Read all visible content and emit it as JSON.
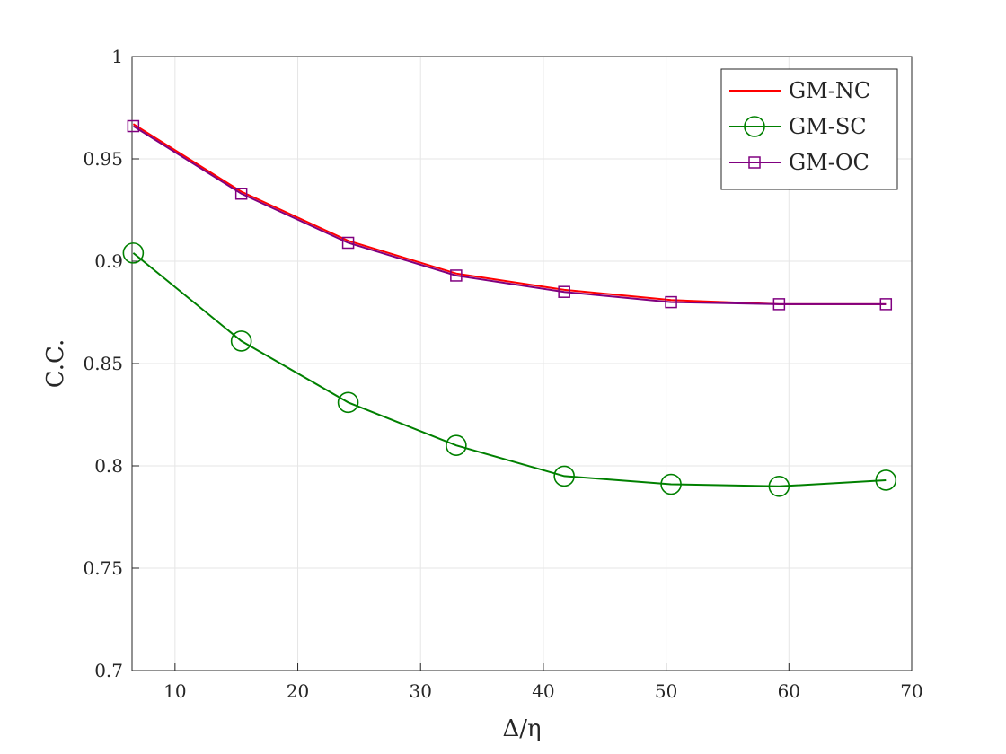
{
  "chart_data": {
    "type": "line",
    "xlabel": "Δ/η",
    "ylabel": "C.C.",
    "xlim": [
      6.5,
      70
    ],
    "ylim": [
      0.7,
      1.0
    ],
    "x_ticks": [
      10,
      20,
      30,
      40,
      50,
      60,
      70
    ],
    "y_ticks": [
      0.7,
      0.75,
      0.8,
      0.85,
      0.9,
      0.95,
      1
    ],
    "x_tick_labels": [
      "10",
      "20",
      "30",
      "40",
      "50",
      "60",
      "70"
    ],
    "y_tick_labels": [
      "0.7",
      "0.75",
      "0.8",
      "0.85",
      "0.9",
      "0.95",
      "1"
    ],
    "grid": true,
    "legend_position": "top-right",
    "x": [
      6.6,
      15.4,
      24.1,
      32.9,
      41.7,
      50.4,
      59.2,
      67.9
    ],
    "series": [
      {
        "name": "GM-NC",
        "color": "#ff0000",
        "marker": "none",
        "values": [
          0.967,
          0.934,
          0.91,
          0.894,
          0.886,
          0.881,
          0.879,
          0.879
        ]
      },
      {
        "name": "GM-SC",
        "color": "#008000",
        "marker": "circle",
        "values": [
          0.904,
          0.861,
          0.831,
          0.81,
          0.795,
          0.791,
          0.79,
          0.793
        ]
      },
      {
        "name": "GM-OC",
        "color": "#800080",
        "marker": "square",
        "values": [
          0.966,
          0.933,
          0.909,
          0.893,
          0.885,
          0.88,
          0.879,
          0.879
        ]
      }
    ]
  }
}
